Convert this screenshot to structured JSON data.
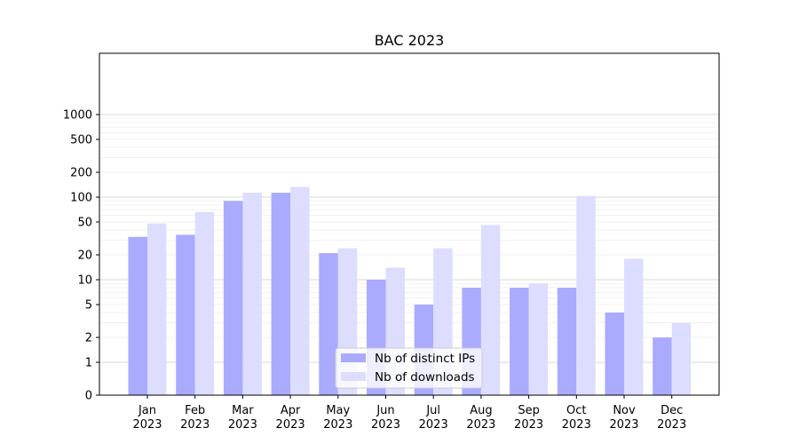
{
  "chart_data": {
    "type": "bar",
    "title": "BAC 2023",
    "xlabel": "",
    "ylabel": "",
    "yscale": "symlog",
    "ylim": [
      0,
      1300
    ],
    "yticks": [
      0,
      1,
      2,
      5,
      10,
      20,
      50,
      100,
      200,
      500,
      1000
    ],
    "ytick_labels": [
      "0",
      "1",
      "2",
      "5",
      "10",
      "20",
      "50",
      "100",
      "200",
      "500",
      "1000"
    ],
    "grid": true,
    "legend_position": "bottom-center",
    "categories": [
      {
        "month": "Jan",
        "year": "2023"
      },
      {
        "month": "Feb",
        "year": "2023"
      },
      {
        "month": "Mar",
        "year": "2023"
      },
      {
        "month": "Apr",
        "year": "2023"
      },
      {
        "month": "May",
        "year": "2023"
      },
      {
        "month": "Jun",
        "year": "2023"
      },
      {
        "month": "Jul",
        "year": "2023"
      },
      {
        "month": "Aug",
        "year": "2023"
      },
      {
        "month": "Sep",
        "year": "2023"
      },
      {
        "month": "Oct",
        "year": "2023"
      },
      {
        "month": "Nov",
        "year": "2023"
      },
      {
        "month": "Dec",
        "year": "2023"
      }
    ],
    "series": [
      {
        "name": "Nb of distinct IPs",
        "color": "#aaaaff",
        "values": [
          33,
          35,
          90,
          113,
          21,
          10,
          5,
          8,
          8,
          8,
          4,
          2
        ]
      },
      {
        "name": "Nb of downloads",
        "color": "#ddddff",
        "values": [
          48,
          66,
          113,
          133,
          24,
          14,
          24,
          46,
          9,
          103,
          18,
          3
        ]
      }
    ]
  }
}
